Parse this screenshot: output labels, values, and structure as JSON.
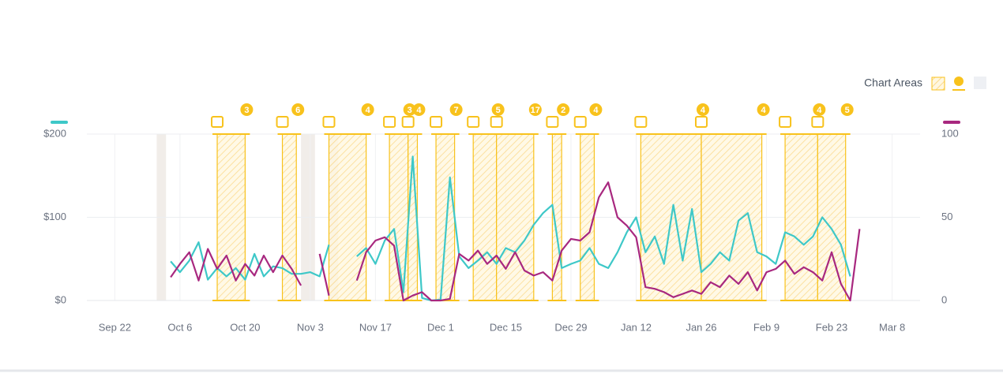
{
  "chart_data": {
    "type": "line",
    "areas_label": "Chart Areas",
    "x": [
      "Oct 4",
      "Oct 6",
      "Oct 8",
      "Oct 10",
      "Oct 12",
      "Oct 14",
      "Oct 16",
      "Oct 18",
      "Oct 20",
      "Oct 22",
      "Oct 24",
      "Oct 26",
      "Oct 28",
      "Oct 30",
      "Nov 1",
      "Nov 3",
      "Nov 5",
      "Nov 7",
      "Nov 9",
      "Nov 11",
      "Nov 13",
      "Nov 15",
      "Nov 17",
      "Nov 19",
      "Nov 21",
      "Nov 23",
      "Nov 25",
      "Nov 27",
      "Nov 29",
      "Dec 1",
      "Dec 3",
      "Dec 5",
      "Dec 7",
      "Dec 9",
      "Dec 11",
      "Dec 13",
      "Dec 15",
      "Dec 17",
      "Dec 19",
      "Dec 21",
      "Dec 23",
      "Dec 25",
      "Dec 27",
      "Dec 29",
      "Dec 31",
      "Jan 2",
      "Jan 4",
      "Jan 6",
      "Jan 8",
      "Jan 10",
      "Jan 12",
      "Jan 14",
      "Jan 16",
      "Jan 18",
      "Jan 20",
      "Jan 22",
      "Jan 24",
      "Jan 26",
      "Jan 28",
      "Jan 30",
      "Feb 1",
      "Feb 3",
      "Feb 5",
      "Feb 7",
      "Feb 9",
      "Feb 11",
      "Feb 13",
      "Feb 15",
      "Feb 17",
      "Feb 19",
      "Feb 21",
      "Feb 23",
      "Feb 25",
      "Feb 27",
      "Mar 1"
    ],
    "series": [
      {
        "color": "#3ec8c8",
        "values": [
          47,
          34,
          48,
          70,
          25,
          39,
          29,
          39,
          25,
          56,
          29,
          41,
          39,
          32,
          32,
          34,
          29,
          67,
          null,
          null,
          53,
          63,
          44,
          72,
          86,
          10,
          173,
          3,
          0,
          1,
          148,
          53,
          39,
          48,
          58,
          44,
          63,
          58,
          72,
          91,
          105,
          115,
          39,
          44,
          48,
          63,
          44,
          39,
          58,
          82,
          100,
          58,
          77,
          44,
          115,
          48,
          110,
          34,
          44,
          58,
          48,
          96,
          105,
          58,
          53,
          44,
          82,
          77,
          67,
          77,
          100,
          86,
          67,
          29,
          null
        ]
      },
      {
        "color": "#a8287f",
        "axis": "y2",
        "values": [
          14,
          22,
          29,
          12,
          31,
          19,
          27,
          12,
          22,
          15,
          27,
          17,
          27,
          19,
          9,
          null,
          28,
          3,
          null,
          null,
          12,
          29,
          36,
          38,
          33,
          0,
          3,
          5,
          0,
          0,
          1,
          28,
          24,
          30,
          22,
          27,
          19,
          29,
          18,
          15,
          17,
          12,
          30,
          37,
          36,
          41,
          62,
          71,
          50,
          45,
          38,
          8,
          7,
          5,
          2,
          4,
          6,
          4,
          11,
          8,
          15,
          10,
          17,
          6,
          17,
          19,
          24,
          16,
          20,
          17,
          12,
          29,
          10,
          0,
          43
        ]
      }
    ],
    "xlim": [
      "Sep 16",
      "Mar 14"
    ],
    "xticks": [
      "Sep 22",
      "Oct 6",
      "Oct 20",
      "Nov 3",
      "Nov 17",
      "Dec 1",
      "Dec 15",
      "Dec 29",
      "Jan 12",
      "Jan 26",
      "Feb 9",
      "Feb 23",
      "Mar 8"
    ],
    "ylim": [
      0,
      200
    ],
    "yticks": [
      {
        "value": 0,
        "label": "$0"
      },
      {
        "value": 100,
        "label": "$100"
      },
      {
        "value": 200,
        "label": "$200"
      }
    ],
    "y2lim": [
      0,
      100
    ],
    "y2ticks": [
      0,
      50,
      100
    ],
    "grid": true,
    "annotations": [
      {
        "start": "Oct 14",
        "end": "Oct 20",
        "count": 3
      },
      {
        "start": "Oct 28",
        "end": "Oct 31",
        "count": 6
      },
      {
        "start": "Nov 7",
        "end": "Nov 15",
        "count": 4
      },
      {
        "start": "Nov 20",
        "end": "Nov 24",
        "count": 3
      },
      {
        "start": "Nov 24",
        "end": "Nov 26",
        "count": 4
      },
      {
        "start": "Nov 30",
        "end": "Dec 4",
        "count": 7
      },
      {
        "start": "Dec 8",
        "end": "Dec 13",
        "count": 5
      },
      {
        "start": "Dec 13",
        "end": "Dec 21",
        "count": 17
      },
      {
        "start": "Dec 25",
        "end": "Dec 27",
        "count": 2
      },
      {
        "start": "Dec 31",
        "end": "Jan 3",
        "count": 4
      },
      {
        "start": "Jan 13",
        "end": "Jan 26",
        "count": 4
      },
      {
        "start": "Jan 26",
        "end": "Feb 8",
        "count": 4
      },
      {
        "start": "Feb 13",
        "end": "Feb 20",
        "count": 4
      },
      {
        "start": "Feb 20",
        "end": "Feb 26",
        "count": 5
      }
    ],
    "excluded": [
      {
        "start": "Oct 1",
        "end": "Oct 3"
      },
      {
        "start": "Nov 1",
        "end": "Nov 4"
      },
      {
        "start": "Nov 7",
        "end": "Nov 9"
      }
    ]
  }
}
